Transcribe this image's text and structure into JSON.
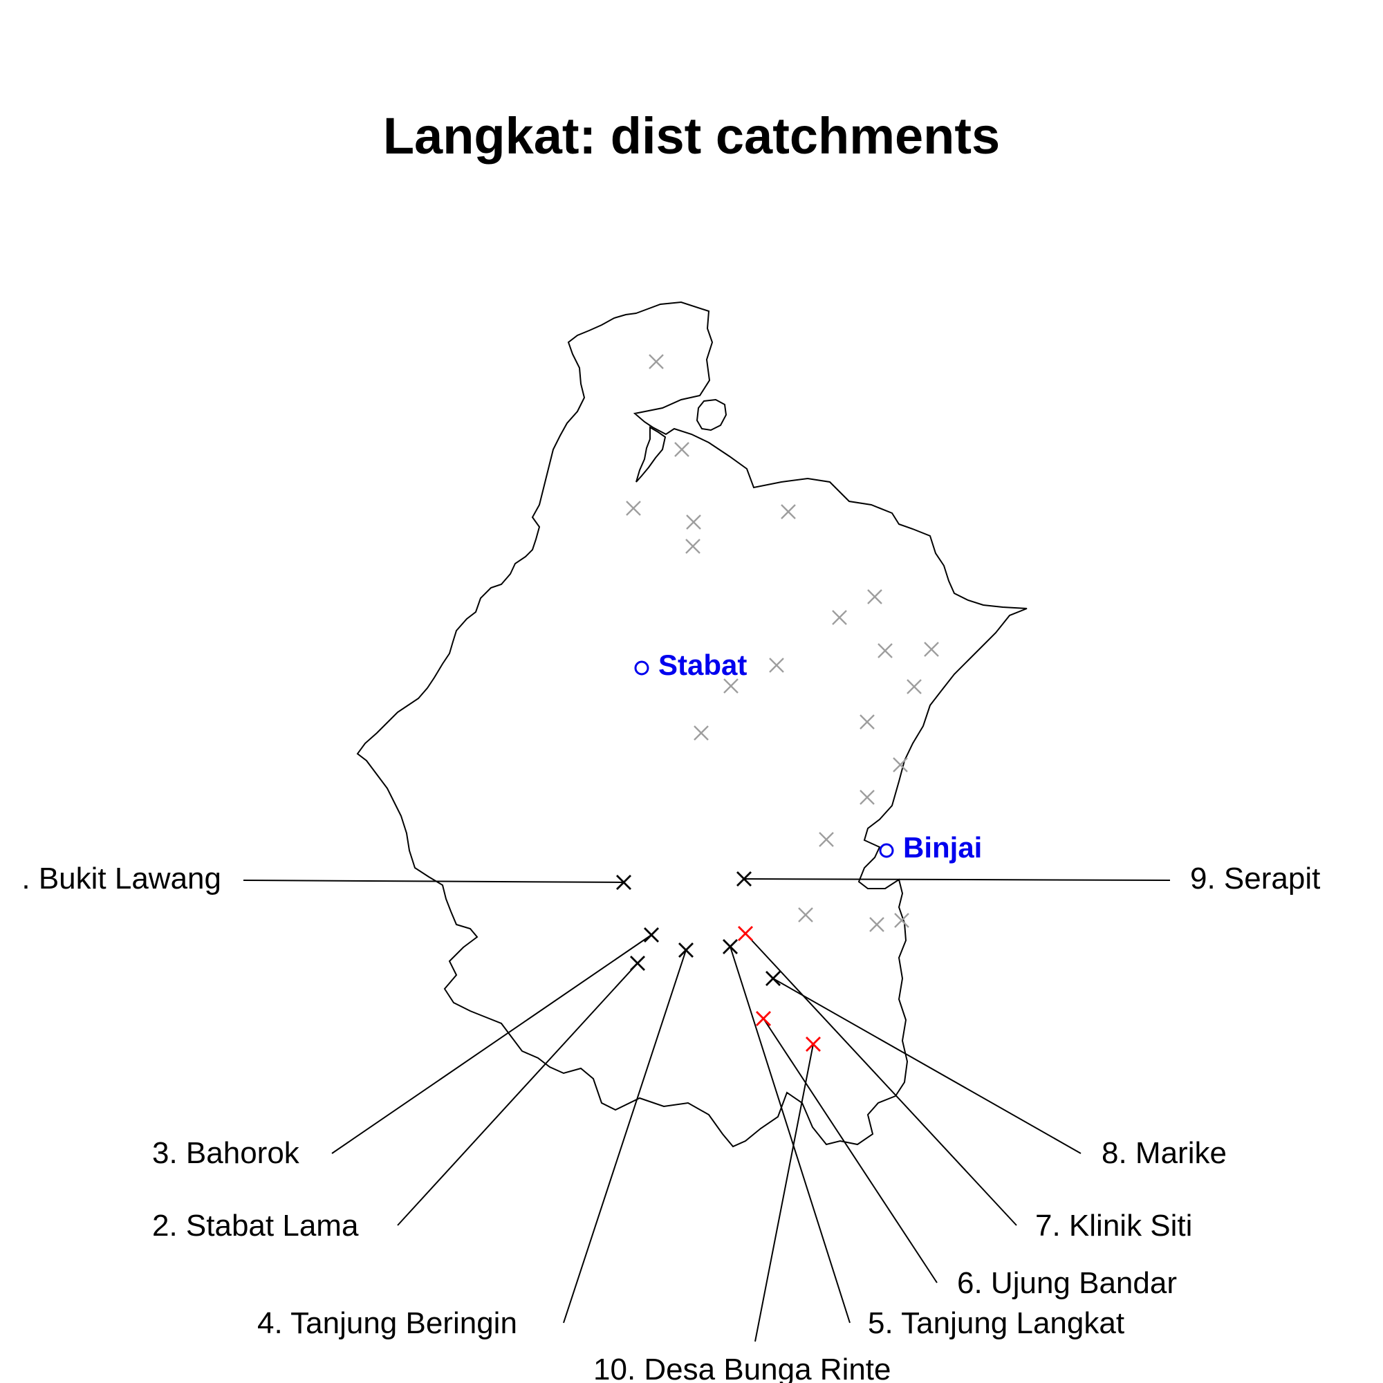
{
  "title": "Langkat: dist catchments",
  "colors": {
    "outline": "#000000",
    "background_point": "#9e9e9e",
    "highlight_point": "#ff0000",
    "site_point": "#000000",
    "town": "#0000ee",
    "leader": "#000000"
  },
  "towns": [
    {
      "name": "Stabat",
      "icon": "open-circle-icon"
    },
    {
      "name": "Binjai",
      "icon": "open-circle-icon"
    }
  ],
  "sites": [
    {
      "label": ". Bukit Lawang",
      "marker": "black"
    },
    {
      "label": "2. Stabat Lama",
      "marker": "black"
    },
    {
      "label": "3. Bahorok",
      "marker": "black"
    },
    {
      "label": "4. Tanjung Beringin",
      "marker": "black"
    },
    {
      "label": "5. Tanjung Langkat",
      "marker": "black"
    },
    {
      "label": "6. Ujung Bandar",
      "marker": "red"
    },
    {
      "label": "7. Klinik Siti",
      "marker": "red"
    },
    {
      "label": "8. Marike",
      "marker": "black"
    },
    {
      "label": "9. Serapit",
      "marker": "black"
    },
    {
      "label": "10. Desa Bunga Rinte",
      "marker": "red"
    }
  ],
  "other_points_marker": "gray-cross-icon"
}
